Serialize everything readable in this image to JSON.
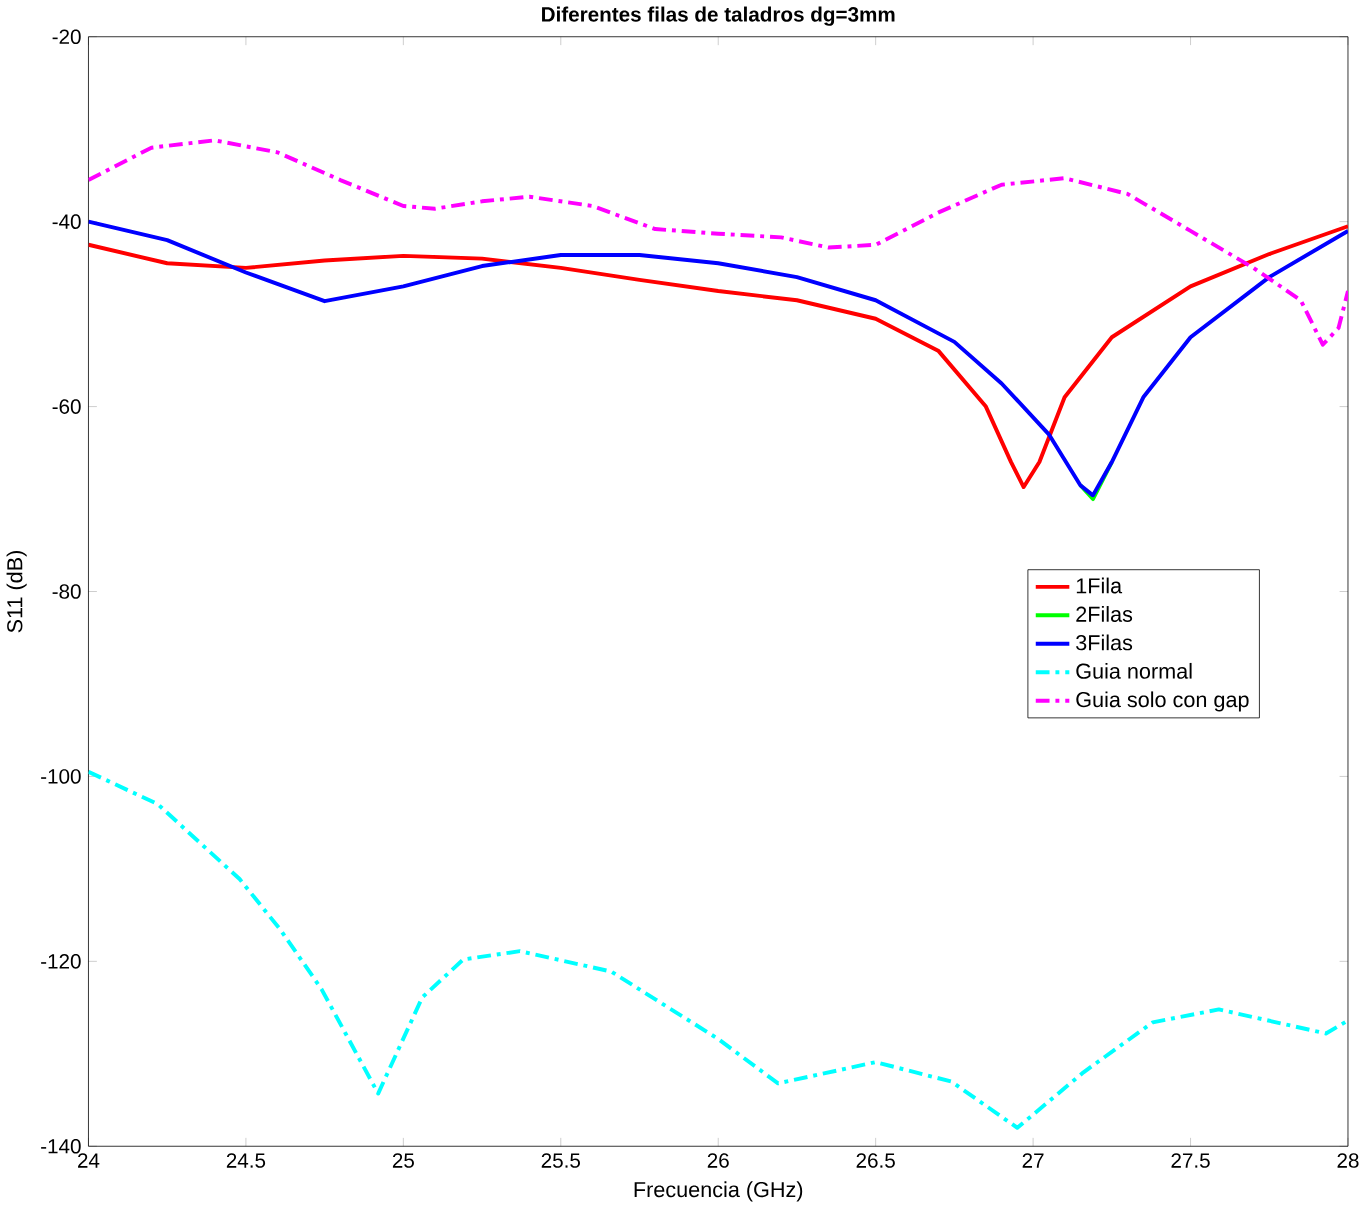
{
  "chart_data": {
    "type": "line",
    "title": "Diferentes filas de taladros dg=3mm",
    "xlabel": "Frecuencia (GHz)",
    "ylabel": "S11 (dB)",
    "xlim": [
      24,
      28
    ],
    "ylim": [
      -140,
      -20
    ],
    "xticks": [
      24,
      24.5,
      25,
      25.5,
      26,
      26.5,
      27,
      27.5,
      28
    ],
    "yticks": [
      -140,
      -120,
      -100,
      -80,
      -60,
      -40,
      -20
    ],
    "grid": false,
    "legend": "right",
    "marker": "none",
    "series": [
      {
        "name": "1Fila",
        "color": "#ff0000",
        "line_style": "solid",
        "x": [
          24,
          24.25,
          24.5,
          24.75,
          25,
          25.25,
          25.5,
          25.75,
          26,
          26.25,
          26.5,
          26.7,
          26.85,
          26.93,
          26.97,
          27.02,
          27.1,
          27.25,
          27.5,
          27.75,
          28
        ],
        "values": [
          -42.5,
          -44.5,
          -45,
          -44.2,
          -43.7,
          -44,
          -45,
          -46.3,
          -47.5,
          -48.5,
          -50.5,
          -54,
          -60,
          -66,
          -68.7,
          -66,
          -59,
          -52.5,
          -47,
          -43.5,
          -40.5
        ]
      },
      {
        "name": "2Filas",
        "color": "#00ff00",
        "line_style": "solid",
        "x": [
          27.15,
          27.19,
          27.25
        ],
        "values": [
          -68.5,
          -70,
          -66
        ]
      },
      {
        "name": "3Filas",
        "color": "#0000ff",
        "line_style": "solid",
        "x": [
          24,
          24.25,
          24.5,
          24.75,
          25,
          25.25,
          25.5,
          25.75,
          26,
          26.25,
          26.5,
          26.75,
          26.9,
          27.05,
          27.15,
          27.19,
          27.25,
          27.35,
          27.5,
          27.75,
          28
        ],
        "values": [
          -40,
          -42,
          -45.5,
          -48.6,
          -47,
          -44.8,
          -43.6,
          -43.6,
          -44.5,
          -46,
          -48.5,
          -53,
          -57.5,
          -63,
          -68.5,
          -69.6,
          -66,
          -59,
          -52.5,
          -46,
          -41
        ]
      },
      {
        "name": "Guia normal",
        "color": "#00ffff",
        "line_style": "dashdot",
        "x": [
          24,
          24.22,
          24.48,
          24.61,
          24.74,
          24.92,
          25.06,
          25.19,
          25.37,
          25.66,
          26.0,
          26.19,
          26.5,
          26.74,
          26.95,
          27.16,
          27.38,
          27.59,
          27.93,
          28
        ],
        "values": [
          -99.5,
          -103,
          -111.1,
          -116.6,
          -123,
          -134.3,
          -123.9,
          -119.8,
          -118.9,
          -121.1,
          -128.4,
          -133.2,
          -130.9,
          -133,
          -138,
          -132,
          -126.6,
          -125.2,
          -127.8,
          -126.4
        ]
      },
      {
        "name": "Guia solo con gap",
        "color": "#ff00ff",
        "line_style": "dashdot",
        "x": [
          24,
          24.2,
          24.4,
          24.6,
          24.8,
          25,
          25.1,
          25.25,
          25.4,
          25.6,
          25.8,
          26,
          26.2,
          26.35,
          26.5,
          26.7,
          26.9,
          27.1,
          27.3,
          27.5,
          27.7,
          27.85,
          27.92,
          27.97,
          28
        ],
        "values": [
          -35.5,
          -32,
          -31.2,
          -32.5,
          -35.5,
          -38.3,
          -38.6,
          -37.8,
          -37.3,
          -38.3,
          -40.8,
          -41.3,
          -41.7,
          -42.8,
          -42.5,
          -39,
          -36,
          -35.3,
          -37,
          -41,
          -45,
          -48.5,
          -53.3,
          -51.5,
          -47.5
        ]
      }
    ]
  }
}
